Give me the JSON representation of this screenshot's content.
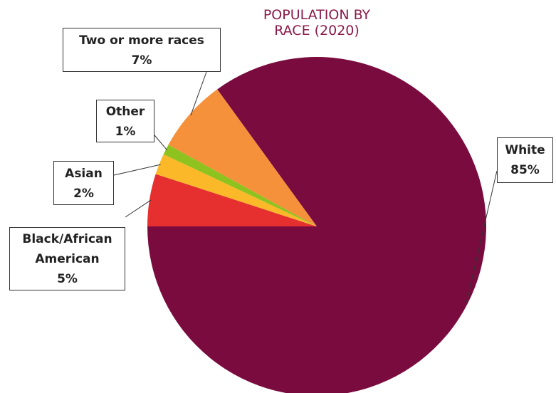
{
  "chart_data": {
    "type": "pie",
    "title_lines": [
      "POPULATION BY",
      "RACE (2020)"
    ],
    "slices": [
      {
        "name": "White",
        "value": 85,
        "label": "85%",
        "color": "#7a0b3f"
      },
      {
        "name": "Black/African American",
        "name_lines": [
          "Black/African",
          "American"
        ],
        "value": 5,
        "label": "5%",
        "color": "#e63030"
      },
      {
        "name": "Asian",
        "value": 2,
        "label": "2%",
        "color": "#fbb829"
      },
      {
        "name": "Other",
        "value": 1,
        "label": "1%",
        "color": "#8dc21f"
      },
      {
        "name": "Two or more races",
        "value": 7,
        "label": "7%",
        "color": "#f5913b"
      }
    ]
  }
}
